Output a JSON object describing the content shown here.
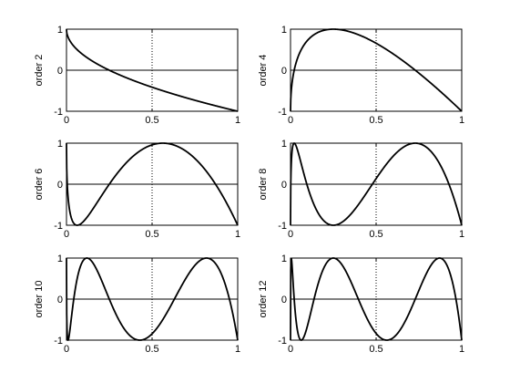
{
  "chart_data": [
    {
      "type": "line",
      "ylabel": "order 2",
      "order": 2,
      "xlim": [
        0,
        1
      ],
      "ylim": [
        -1,
        1
      ],
      "x_ticks": [
        "0",
        "0.5",
        "1"
      ],
      "y_ticks": [
        "1",
        "0",
        "-1"
      ],
      "reference_line_x": 0.5,
      "reference_line_y": 0,
      "grid": false
    },
    {
      "type": "line",
      "ylabel": "order 4",
      "order": 4,
      "xlim": [
        0,
        1
      ],
      "ylim": [
        -1,
        1
      ],
      "x_ticks": [
        "0",
        "0.5",
        "1"
      ],
      "y_ticks": [
        "1",
        "0",
        "-1"
      ],
      "reference_line_x": 0.5,
      "reference_line_y": 0,
      "grid": false
    },
    {
      "type": "line",
      "ylabel": "order 6",
      "order": 6,
      "xlim": [
        0,
        1
      ],
      "ylim": [
        -1,
        1
      ],
      "x_ticks": [
        "0",
        "0.5",
        "1"
      ],
      "y_ticks": [
        "1",
        "0",
        "-1"
      ],
      "reference_line_x": 0.5,
      "reference_line_y": 0,
      "grid": false
    },
    {
      "type": "line",
      "ylabel": "order 8",
      "order": 8,
      "xlim": [
        0,
        1
      ],
      "ylim": [
        -1,
        1
      ],
      "x_ticks": [
        "0",
        "0.5",
        "1"
      ],
      "y_ticks": [
        "1",
        "0",
        "-1"
      ],
      "reference_line_x": 0.5,
      "reference_line_y": 0,
      "grid": false
    },
    {
      "type": "line",
      "ylabel": "order 10",
      "order": 10,
      "xlim": [
        0,
        1
      ],
      "ylim": [
        -1,
        1
      ],
      "x_ticks": [
        "0",
        "0.5",
        "1"
      ],
      "y_ticks": [
        "1",
        "0",
        "-1"
      ],
      "reference_line_x": 0.5,
      "reference_line_y": 0,
      "grid": false
    },
    {
      "type": "line",
      "ylabel": "order 12",
      "order": 12,
      "xlim": [
        0,
        1
      ],
      "ylim": [
        -1,
        1
      ],
      "x_ticks": [
        "0",
        "0.5",
        "1"
      ],
      "y_ticks": [
        "1",
        "0",
        "-1"
      ],
      "reference_line_x": 0.5,
      "reference_line_y": 0,
      "grid": false
    }
  ],
  "colors": {
    "curve": "#000000",
    "axes": "#000000",
    "background": "#ffffff"
  }
}
